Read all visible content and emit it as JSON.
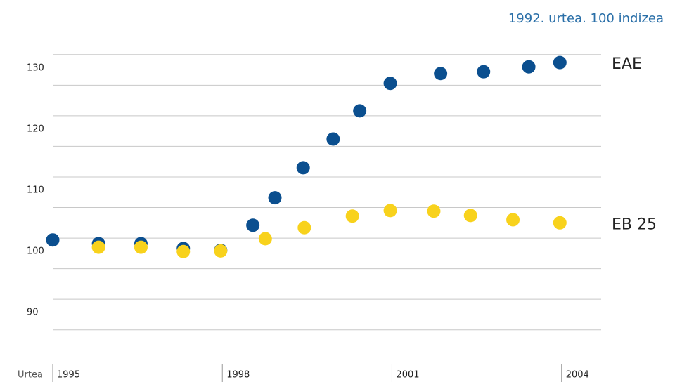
{
  "chart_data": {
    "type": "scatter",
    "subtitle": "1992. urtea. 100 indizea",
    "x_label": "Urtea",
    "xlim": [
      1995,
      2004.7
    ],
    "xticks": [
      1995,
      1998,
      2001,
      2004
    ],
    "ylim": [
      79,
      132.5
    ],
    "yticks": [
      90,
      100,
      110,
      120,
      130
    ],
    "grid": true,
    "series": [
      {
        "name": "EAE",
        "color": "#0b4f8f",
        "x": [
          1995.0,
          1995.81,
          1996.56,
          1997.31,
          1997.97,
          1998.54,
          1998.93,
          1999.43,
          1999.96,
          2000.43,
          2000.97,
          2001.86,
          2002.62,
          2003.42,
          2003.97
        ],
        "values": [
          99.7,
          99.1,
          99.1,
          98.3,
          98.0,
          102.1,
          106.6,
          111.5,
          116.2,
          120.8,
          125.3,
          126.9,
          127.2,
          128.0,
          128.7
        ]
      },
      {
        "name": "EB 25",
        "color": "#f8d21c",
        "x": [
          1995.81,
          1996.56,
          1997.31,
          1997.97,
          1998.76,
          1999.45,
          2000.3,
          2000.97,
          2001.74,
          2002.39,
          2003.14,
          2003.97
        ],
        "values": [
          98.5,
          98.5,
          97.8,
          97.9,
          99.9,
          101.7,
          103.6,
          104.5,
          104.4,
          103.7,
          103.0,
          102.5
        ]
      }
    ]
  }
}
